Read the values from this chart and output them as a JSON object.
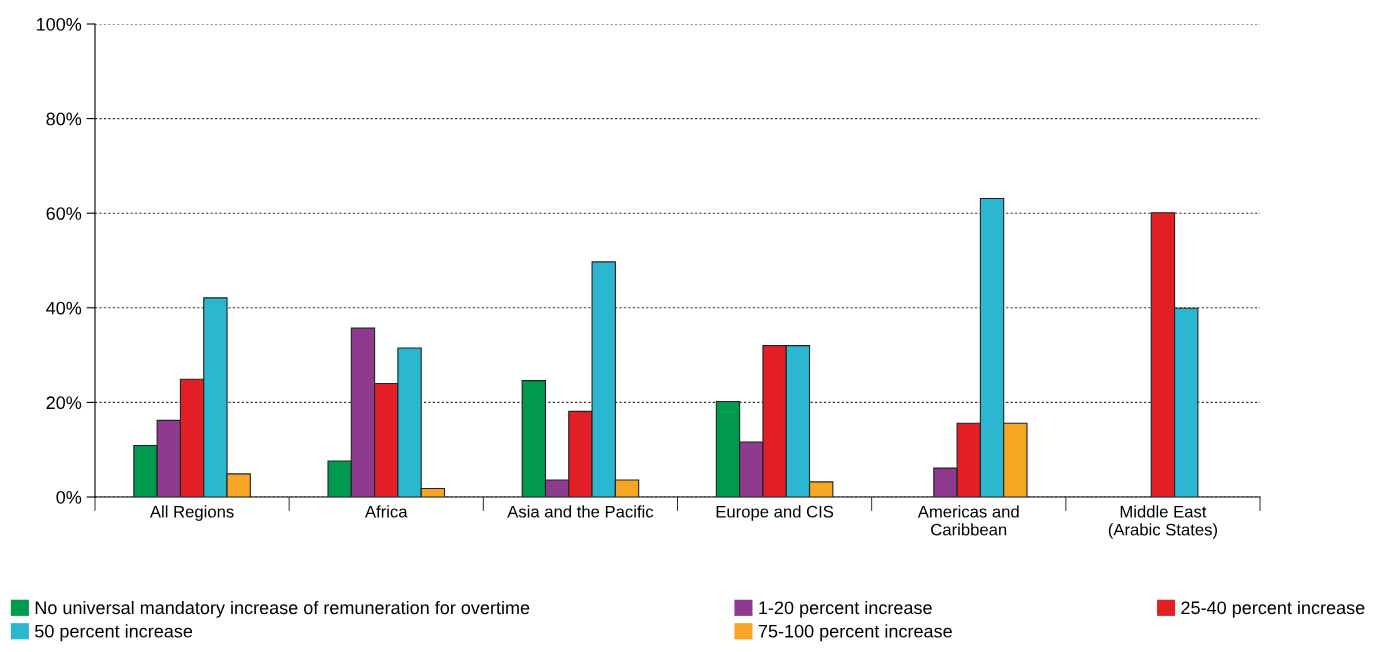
{
  "chart_data": {
    "type": "bar",
    "categories": [
      "All Regions",
      "Africa",
      "Asia and the Pacific",
      "Europe and CIS",
      "Americas and\nCaribbean",
      "Middle East\n(Arabic States)"
    ],
    "series": [
      {
        "name": "No universal mandatory increase of remuneration for overtime",
        "color": "#009a4e",
        "values": [
          10.9,
          7.6,
          24.6,
          20.2,
          null,
          null
        ]
      },
      {
        "name": "1-20 percent increase",
        "color": "#8e3a8f",
        "values": [
          16.2,
          35.7,
          3.6,
          11.6,
          6.1,
          null
        ]
      },
      {
        "name": "25-40 percent increase",
        "color": "#e31f26",
        "values": [
          24.9,
          24.0,
          18.1,
          32.0,
          15.6,
          60.1
        ]
      },
      {
        "name": "50 percent increase",
        "color": "#2ab7cf",
        "values": [
          42.1,
          31.5,
          49.7,
          32.0,
          63.1,
          39.9
        ]
      },
      {
        "name": "75-100 percent increase",
        "color": "#f6a623",
        "values": [
          4.9,
          1.8,
          3.6,
          3.2,
          15.6,
          null
        ]
      }
    ],
    "ylim": [
      0,
      100
    ],
    "yticks": [
      {
        "value": 0,
        "label": "0%"
      },
      {
        "value": 20,
        "label": "20%"
      },
      {
        "value": 40,
        "label": "40%"
      },
      {
        "value": 60,
        "label": "60%"
      },
      {
        "value": 80,
        "label": "80%"
      },
      {
        "value": 100,
        "label": "100%"
      }
    ],
    "grid": "y",
    "legend": "bottom"
  }
}
